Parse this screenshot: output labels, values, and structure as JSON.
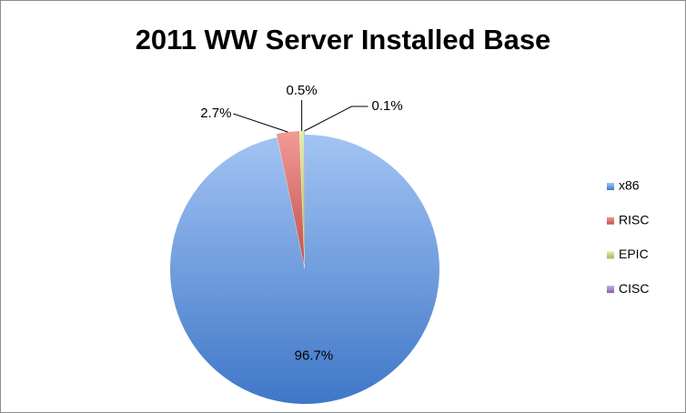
{
  "chart_data": {
    "type": "pie",
    "title": "2011 WW Server Installed Base",
    "categories": [
      "x86",
      "RISC",
      "EPIC",
      "CISC"
    ],
    "values": [
      96.7,
      2.7,
      0.5,
      0.1
    ],
    "value_labels": [
      "96.7%",
      "2.7%",
      "0.5%",
      "0.1%"
    ],
    "colors": [
      "#4f81bd",
      "#c0504d",
      "#9bbb59",
      "#8064a2"
    ],
    "legend": "right"
  }
}
